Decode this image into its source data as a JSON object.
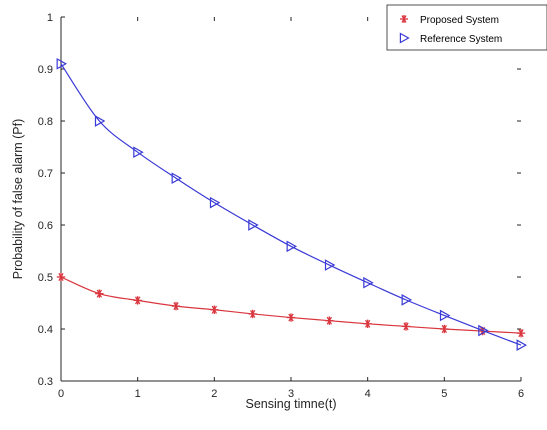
{
  "chart_data": {
    "type": "line",
    "xlabel": "Sensing timne(t)",
    "ylabel": "Probability of false alarm (Pf)",
    "xlim": [
      0,
      6
    ],
    "ylim": [
      0.3,
      1
    ],
    "xticks": [
      "0",
      "1",
      "2",
      "3",
      "4",
      "5",
      "6"
    ],
    "yticks": [
      "0.3",
      "0.4",
      "0.5",
      "0.6",
      "0.7",
      "0.8",
      "0.9",
      "1"
    ],
    "grid": false,
    "legend_position": "top-right",
    "x": [
      0,
      0.5,
      1,
      1.5,
      2,
      2.5,
      3,
      3.5,
      4,
      4.5,
      5,
      5.5,
      6
    ],
    "series": [
      {
        "name": "Proposed System",
        "values": [
          0.5,
          0.468,
          0.455,
          0.444,
          0.437,
          0.429,
          0.422,
          0.416,
          0.41,
          0.405,
          0.4,
          0.396,
          0.392
        ],
        "color": "#d9363e",
        "marker": "asterisk"
      },
      {
        "name": "Reference System",
        "values": [
          0.91,
          0.8,
          0.74,
          0.69,
          0.643,
          0.6,
          0.559,
          0.523,
          0.489,
          0.456,
          0.426,
          0.397,
          0.369
        ],
        "color": "#3a3ad6",
        "marker": "triangle-right"
      }
    ]
  }
}
